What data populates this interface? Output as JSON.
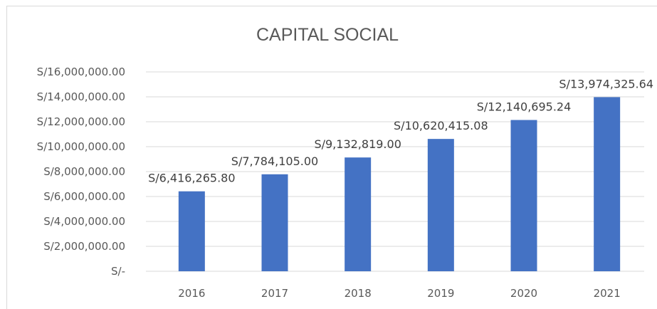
{
  "chart_data": {
    "type": "bar",
    "title": "CAPITAL SOCIAL",
    "xlabel": "",
    "ylabel": "",
    "categories": [
      "2016",
      "2017",
      "2018",
      "2019",
      "2020",
      "2021"
    ],
    "values": [
      6416265.8,
      7784105.0,
      9132819.0,
      10620415.08,
      12140695.24,
      13974325.64
    ],
    "data_labels": [
      "S/6,416,265.80",
      "S/7,784,105.00",
      "S/9,132,819.00",
      "S/10,620,415.08",
      "S/12,140,695.24",
      "S/13,974,325.64"
    ],
    "ylim": [
      0,
      16000000
    ],
    "y_ticks": [
      0,
      2000000,
      4000000,
      6000000,
      8000000,
      10000000,
      12000000,
      14000000,
      16000000
    ],
    "y_tick_labels": [
      "S/-",
      "S/2,000,000.00",
      "S/4,000,000.00",
      "S/6,000,000.00",
      "S/8,000,000.00",
      "S/10,000,000.00",
      "S/12,000,000.00",
      "S/14,000,000.00",
      "S/16,000,000.00"
    ],
    "grid": true,
    "legend": "none",
    "bar_color": "#4472c4"
  }
}
